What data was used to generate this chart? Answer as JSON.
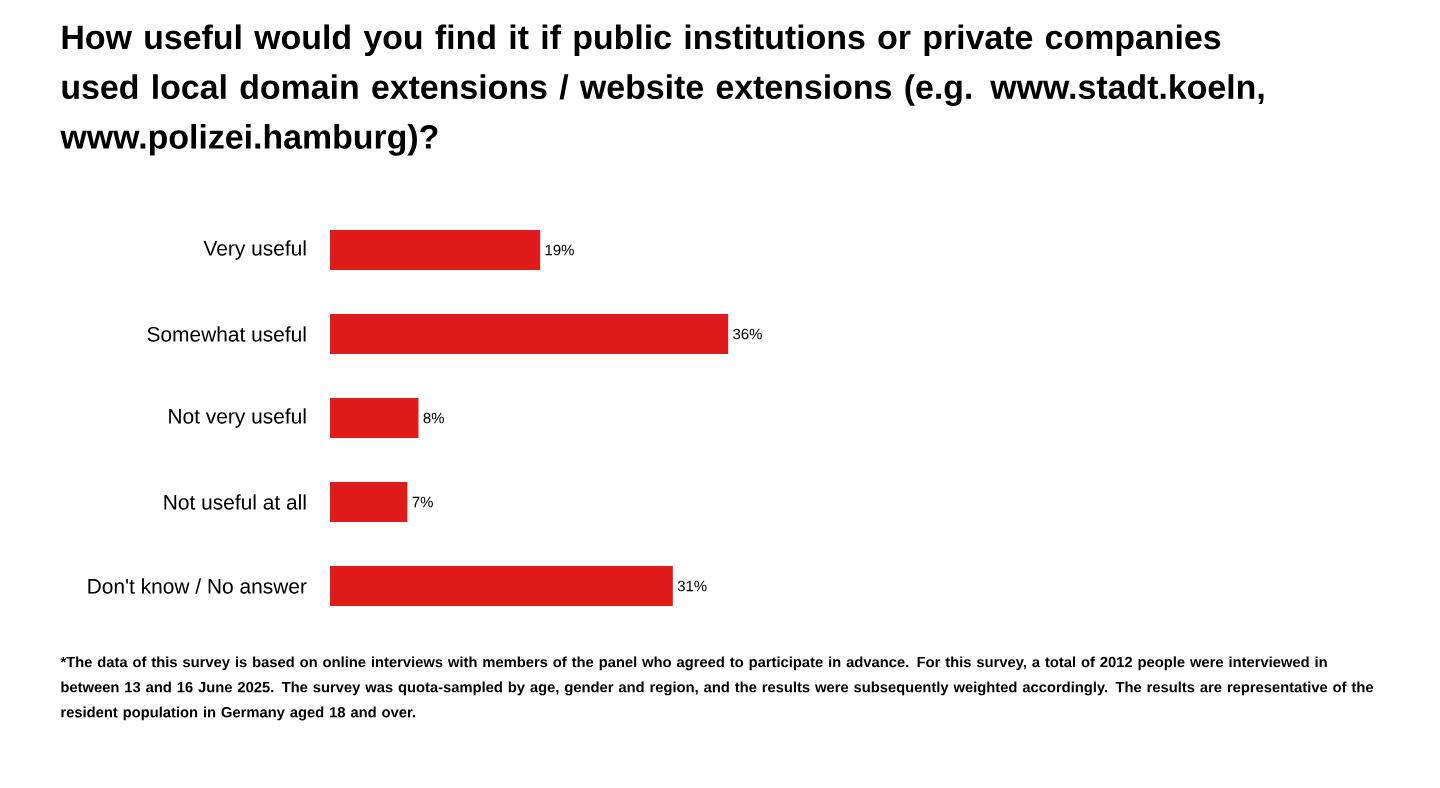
{
  "chart_data": {
    "type": "bar",
    "orientation": "horizontal",
    "title": "How useful would you find it if public institutions or private companies used local domain extensions / website extensions (e.g. www.stadt.koeln, www.polizei.hamburg)?",
    "categories": [
      "Very useful",
      "Somewhat useful",
      "Not very useful",
      "Not useful at all",
      "Don't know / No answer"
    ],
    "values": [
      19,
      36,
      8,
      7,
      31
    ],
    "value_labels": [
      "19%",
      "36%",
      "8%",
      "7%",
      "31%"
    ],
    "color": "#e01b1b",
    "tick_labels": "y",
    "annotations": [
      "*The data of this survey is based on online interviews with members of the panel who agreed to participate in advance. For this survey, a total of 2012 people were interviewed in between 13 and 16 June 2025. The survey was quota-sampled by age, gender and region, and the results were subsequently weighted accordingly. The results are representative of the resident population in Germany aged 18 and over."
    ]
  }
}
